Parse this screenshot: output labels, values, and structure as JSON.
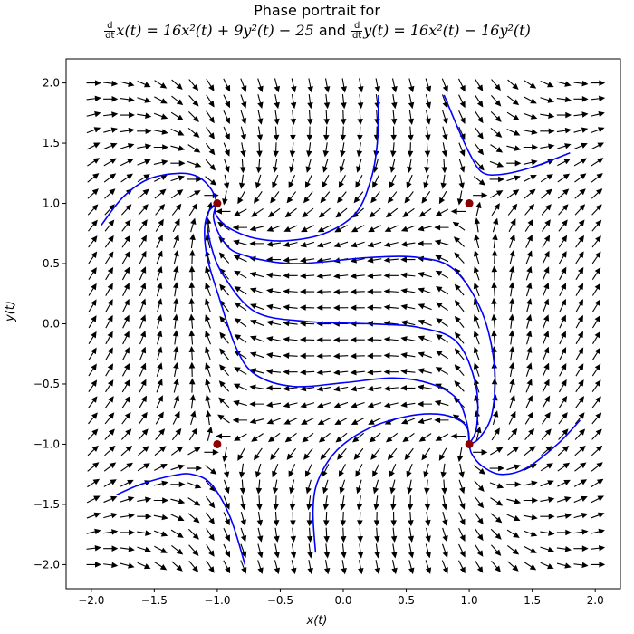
{
  "chart_data": {
    "type": "vector-field",
    "title_line1": "Phase portrait for",
    "title_line2": {
      "eq1": "x(t) = 16x²(t) + 9y²(t) − 25",
      "connector": "and",
      "eq2": "y(t) = 16x²(t) − 16y²(t)",
      "ddt_num": "d",
      "ddt_den": "dt"
    },
    "xlabel": "x(t)",
    "ylabel": "y(t)",
    "xlim": [
      -2.2,
      2.2
    ],
    "ylim": [
      -2.2,
      2.2
    ],
    "xticks": [
      -2.0,
      -1.5,
      -1.0,
      -0.5,
      0.0,
      0.5,
      1.0,
      1.5,
      2.0
    ],
    "yticks": [
      -2.0,
      -1.5,
      -1.0,
      -0.5,
      0.0,
      0.5,
      1.0,
      1.5,
      2.0
    ],
    "xtick_labels": [
      "−2.0",
      "−1.5",
      "−1.0",
      "−0.5",
      "0.0",
      "0.5",
      "1.0",
      "1.5",
      "2.0"
    ],
    "ytick_labels": [
      "−2.0",
      "−1.5",
      "−1.0",
      "−0.5",
      "0.0",
      "0.5",
      "1.0",
      "1.5",
      "2.0"
    ],
    "grid": false,
    "equilibria": [
      [
        -1,
        1
      ],
      [
        1,
        1
      ],
      [
        -1,
        -1
      ],
      [
        1,
        -1
      ]
    ],
    "equilibrium_color": "#8b0000",
    "trajectory_color": "#0000ff",
    "arrow_color": "#000000",
    "trajectories": [
      [
        [
          0.28,
          1.9
        ],
        [
          0.27,
          1.5
        ],
        [
          0.22,
          1.2
        ],
        [
          0.1,
          0.92
        ],
        [
          -0.15,
          0.75
        ],
        [
          -0.45,
          0.69
        ],
        [
          -0.7,
          0.71
        ],
        [
          -0.88,
          0.78
        ],
        [
          -0.98,
          0.86
        ],
        [
          -1.02,
          0.94
        ],
        [
          -1.0,
          1.0
        ]
      ],
      [
        [
          -1.92,
          0.82
        ],
        [
          -1.75,
          1.05
        ],
        [
          -1.55,
          1.2
        ],
        [
          -1.3,
          1.25
        ],
        [
          -1.15,
          1.22
        ],
        [
          -1.05,
          1.12
        ],
        [
          -1.0,
          1.0
        ]
      ],
      [
        [
          1.88,
          -0.8
        ],
        [
          1.7,
          -1.0
        ],
        [
          1.45,
          -1.2
        ],
        [
          1.25,
          -1.25
        ],
        [
          1.1,
          -1.18
        ],
        [
          1.02,
          -1.08
        ],
        [
          1.0,
          -1.0
        ]
      ],
      [
        [
          -1.8,
          -1.42
        ],
        [
          -1.6,
          -1.33
        ],
        [
          -1.35,
          -1.26
        ],
        [
          -1.2,
          -1.25
        ],
        [
          -1.05,
          -1.33
        ],
        [
          -0.9,
          -1.6
        ],
        [
          -0.78,
          -2.0
        ]
      ],
      [
        [
          0.8,
          1.9
        ],
        [
          0.9,
          1.65
        ],
        [
          1.0,
          1.42
        ],
        [
          1.1,
          1.26
        ],
        [
          1.25,
          1.24
        ],
        [
          1.5,
          1.3
        ],
        [
          1.8,
          1.42
        ]
      ],
      [
        [
          -0.22,
          -1.9
        ],
        [
          -0.24,
          -1.55
        ],
        [
          -0.2,
          -1.3
        ],
        [
          -0.05,
          -1.05
        ],
        [
          0.2,
          -0.87
        ],
        [
          0.5,
          -0.77
        ],
        [
          0.75,
          -0.75
        ],
        [
          0.92,
          -0.8
        ],
        [
          0.99,
          -0.88
        ],
        [
          1.0,
          -1.0
        ]
      ],
      [
        [
          -1.0,
          1.0
        ],
        [
          -1.06,
          0.95
        ],
        [
          -1.1,
          0.8
        ],
        [
          -1.08,
          0.55
        ],
        [
          -0.98,
          0.2
        ],
        [
          -0.85,
          -0.2
        ],
        [
          -0.7,
          -0.42
        ],
        [
          -0.4,
          -0.52
        ],
        [
          0.0,
          -0.49
        ],
        [
          0.4,
          -0.45
        ],
        [
          0.7,
          -0.5
        ],
        [
          0.9,
          -0.62
        ],
        [
          0.98,
          -0.82
        ],
        [
          1.0,
          -1.0
        ]
      ],
      [
        [
          -1.0,
          1.0
        ],
        [
          -1.08,
          0.9
        ],
        [
          -1.05,
          0.65
        ],
        [
          -0.95,
          0.4
        ],
        [
          -0.7,
          0.1
        ],
        [
          -0.3,
          0.02
        ],
        [
          0.2,
          0.0
        ],
        [
          0.6,
          -0.03
        ],
        [
          0.9,
          -0.15
        ],
        [
          1.05,
          -0.5
        ],
        [
          1.06,
          -0.85
        ],
        [
          1.0,
          -1.0
        ]
      ],
      [
        [
          -1.0,
          1.0
        ],
        [
          -1.03,
          0.88
        ],
        [
          -0.96,
          0.7
        ],
        [
          -0.82,
          0.58
        ],
        [
          -0.4,
          0.5
        ],
        [
          0.2,
          0.55
        ],
        [
          0.6,
          0.55
        ],
        [
          0.88,
          0.45
        ],
        [
          1.1,
          0.1
        ],
        [
          1.2,
          -0.35
        ],
        [
          1.18,
          -0.75
        ],
        [
          1.08,
          -0.95
        ],
        [
          1.0,
          -1.0
        ]
      ]
    ]
  }
}
